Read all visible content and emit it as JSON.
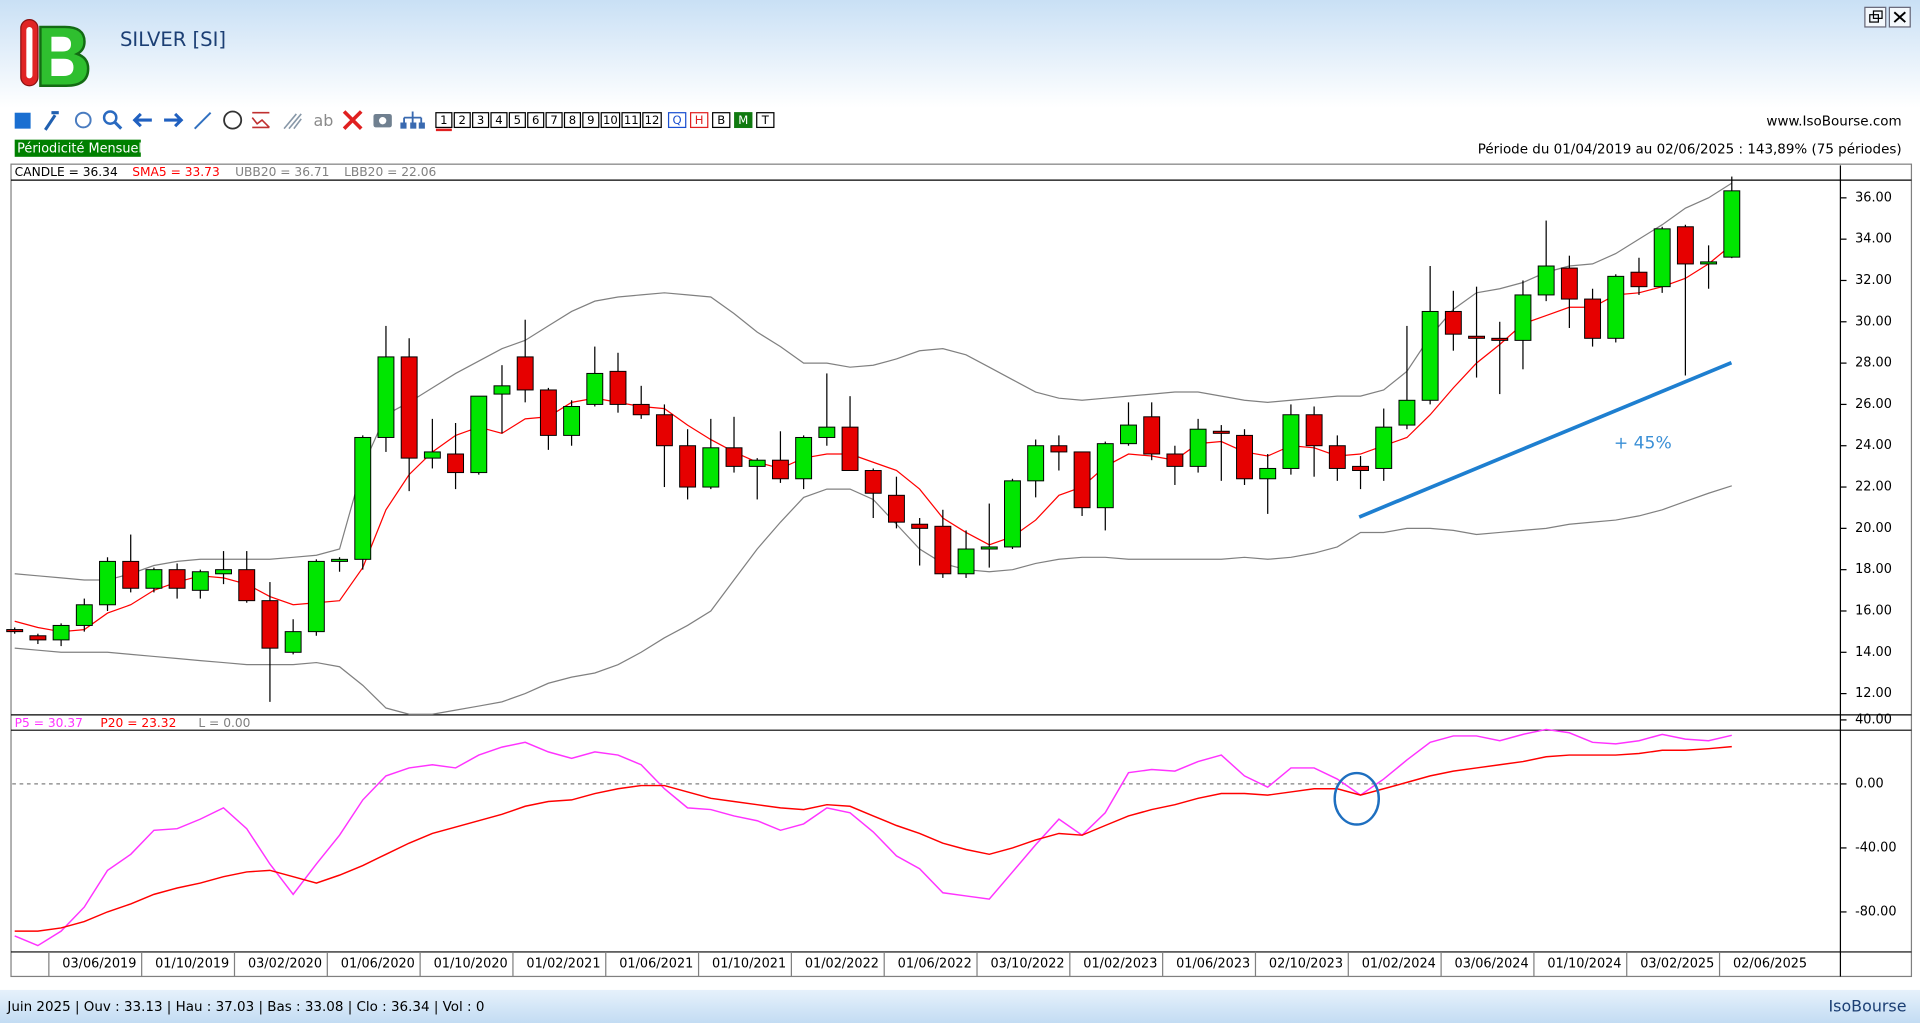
{
  "header": {
    "title": "SILVER [SI]",
    "website": "www.IsoBourse.com",
    "periodicity": "Périodicité Mensuelle",
    "period": "Période du 01/04/2019 au 02/06/2025 : 143,89% (75 périodes)"
  },
  "toolbar": {
    "numbers": [
      "1",
      "2",
      "3",
      "4",
      "5",
      "6",
      "7",
      "8",
      "9",
      "10",
      "11",
      "12"
    ],
    "letters": [
      "Q",
      "H",
      "B",
      "M",
      "T"
    ]
  },
  "chart_data": [
    {
      "type": "candlestick",
      "name": "CANDLE = 36.34",
      "annotation": "+ 45%",
      "up_color": "#00e600",
      "down_color": "#e60000",
      "categories": [
        null,
        null,
        "03/06/2019",
        null,
        null,
        null,
        "01/10/2019",
        null,
        null,
        null,
        "03/02/2020",
        null,
        null,
        null,
        "01/06/2020",
        null,
        null,
        null,
        "01/10/2020",
        null,
        null,
        null,
        "01/02/2021",
        null,
        null,
        null,
        "01/06/2021",
        null,
        null,
        null,
        "01/10/2021",
        null,
        null,
        null,
        "01/02/2022",
        null,
        null,
        null,
        "01/06/2022",
        null,
        null,
        null,
        "03/10/2022",
        null,
        null,
        null,
        "01/02/2023",
        null,
        null,
        null,
        "01/06/2023",
        null,
        null,
        null,
        "02/10/2023",
        null,
        null,
        null,
        "01/02/2024",
        null,
        null,
        null,
        "03/06/2024",
        null,
        null,
        null,
        "01/10/2024",
        null,
        null,
        null,
        "03/02/2025",
        null,
        null,
        null,
        "02/06/2025"
      ],
      "open": [
        15.1,
        14.8,
        14.6,
        15.3,
        16.3,
        18.4,
        17.1,
        18.0,
        17.0,
        17.8,
        18.0,
        16.5,
        14.0,
        15.0,
        18.4,
        18.5,
        24.4,
        28.3,
        23.4,
        23.6,
        22.7,
        26.5,
        28.3,
        26.7,
        24.5,
        26.0,
        27.6,
        26.0,
        25.5,
        24.0,
        22.0,
        23.9,
        23.0,
        23.3,
        22.4,
        24.4,
        24.9,
        22.8,
        21.6,
        20.2,
        20.1,
        17.8,
        19.0,
        19.1,
        22.3,
        24.0,
        23.7,
        21.0,
        24.1,
        25.4,
        23.6,
        23.0,
        24.7,
        24.5,
        22.4,
        22.9,
        25.5,
        24.0,
        23.0,
        22.9,
        25.0,
        26.2,
        30.5,
        29.3,
        29.2,
        29.1,
        31.3,
        32.6,
        31.1,
        29.2,
        32.4,
        31.7,
        34.6,
        32.8,
        33.13
      ],
      "high": [
        15.2,
        14.9,
        15.4,
        16.6,
        18.6,
        19.7,
        18.1,
        18.3,
        18.0,
        18.9,
        18.9,
        17.4,
        15.6,
        18.5,
        18.6,
        24.5,
        29.8,
        29.2,
        25.3,
        25.1,
        26.4,
        27.9,
        30.1,
        26.8,
        26.2,
        28.8,
        28.5,
        26.9,
        26.0,
        24.8,
        25.3,
        25.4,
        23.4,
        24.7,
        24.5,
        27.5,
        26.4,
        22.9,
        22.5,
        20.5,
        20.9,
        19.9,
        21.2,
        22.4,
        24.3,
        24.5,
        23.7,
        24.2,
        26.1,
        26.1,
        24.0,
        25.3,
        25.0,
        24.8,
        23.6,
        26.0,
        25.9,
        24.5,
        23.5,
        25.8,
        29.8,
        32.7,
        31.5,
        31.7,
        30.0,
        32.0,
        34.9,
        33.2,
        31.6,
        32.3,
        33.1,
        34.6,
        34.7,
        33.7,
        37.03
      ],
      "low": [
        14.9,
        14.4,
        14.3,
        15.0,
        16.0,
        16.9,
        16.9,
        16.6,
        16.6,
        17.3,
        16.4,
        11.6,
        13.9,
        14.8,
        17.9,
        18.0,
        23.7,
        21.8,
        22.9,
        21.9,
        22.6,
        24.6,
        26.1,
        23.8,
        24.0,
        25.9,
        25.6,
        25.3,
        22.0,
        21.4,
        21.9,
        22.7,
        21.4,
        22.2,
        21.9,
        24.0,
        22.8,
        20.5,
        20.0,
        18.2,
        17.6,
        17.6,
        18.1,
        19.0,
        21.5,
        22.8,
        20.6,
        19.9,
        24.0,
        23.3,
        22.1,
        22.7,
        22.3,
        22.1,
        20.7,
        22.6,
        22.5,
        22.3,
        21.9,
        22.3,
        24.8,
        26.0,
        28.6,
        27.3,
        26.5,
        27.7,
        31.0,
        29.7,
        28.8,
        29.0,
        31.3,
        31.4,
        27.4,
        31.6,
        33.08
      ],
      "close": [
        15.0,
        14.6,
        15.3,
        16.3,
        18.4,
        17.1,
        18.0,
        17.1,
        17.9,
        18.0,
        16.5,
        14.2,
        15.0,
        18.4,
        18.5,
        24.4,
        28.3,
        23.4,
        23.7,
        22.7,
        26.4,
        26.9,
        26.7,
        24.5,
        25.9,
        27.5,
        26.0,
        25.5,
        24.0,
        22.0,
        23.9,
        23.0,
        23.3,
        22.4,
        24.4,
        24.9,
        22.8,
        21.7,
        20.3,
        20.0,
        17.8,
        19.0,
        19.1,
        22.3,
        24.0,
        23.7,
        21.0,
        24.1,
        25.0,
        23.6,
        23.0,
        24.8,
        24.6,
        22.4,
        22.9,
        25.5,
        24.0,
        22.9,
        22.8,
        24.9,
        26.2,
        30.5,
        29.4,
        29.2,
        29.1,
        31.3,
        32.7,
        31.1,
        29.2,
        32.2,
        31.7,
        34.5,
        32.8,
        32.9,
        36.34
      ],
      "series": [
        {
          "name": "SMA5 = 33.73",
          "color": "#ff0000",
          "values": [
            15.5,
            15.2,
            15.0,
            15.1,
            15.9,
            16.3,
            17.0,
            17.4,
            17.7,
            17.6,
            17.3,
            16.7,
            16.3,
            16.4,
            16.5,
            18.1,
            20.9,
            22.6,
            23.7,
            24.5,
            24.9,
            24.6,
            25.3,
            25.4,
            26.1,
            26.3,
            26.1,
            25.9,
            25.8,
            25.0,
            24.3,
            23.7,
            23.2,
            22.9,
            23.4,
            23.6,
            23.6,
            23.2,
            22.8,
            21.9,
            20.5,
            19.8,
            19.2,
            19.6,
            20.4,
            21.6,
            22.0,
            23.0,
            23.6,
            23.5,
            23.3,
            24.1,
            24.2,
            23.7,
            23.5,
            24.0,
            23.9,
            23.5,
            23.6,
            24.0,
            24.4,
            25.5,
            26.8,
            28.0,
            28.9,
            29.9,
            30.3,
            30.7,
            30.7,
            31.3,
            31.4,
            31.7,
            32.1,
            32.8,
            33.73
          ]
        },
        {
          "name": "UBB20 = 36.71",
          "color": "#808080",
          "values": [
            17.8,
            17.7,
            17.6,
            17.5,
            17.5,
            17.8,
            18.2,
            18.4,
            18.5,
            18.5,
            18.5,
            18.5,
            18.6,
            18.7,
            19.0,
            23.0,
            25.5,
            26.1,
            26.8,
            27.5,
            28.1,
            28.7,
            29.1,
            29.8,
            30.5,
            31.0,
            31.2,
            31.3,
            31.4,
            31.3,
            31.2,
            30.4,
            29.5,
            28.8,
            28.0,
            28.0,
            27.8,
            27.9,
            28.2,
            28.6,
            28.7,
            28.4,
            27.8,
            27.2,
            26.6,
            26.3,
            26.2,
            26.3,
            26.4,
            26.5,
            26.6,
            26.6,
            26.4,
            26.2,
            26.1,
            26.2,
            26.3,
            26.4,
            26.4,
            26.7,
            27.6,
            29.3,
            30.6,
            31.4,
            31.6,
            31.9,
            32.4,
            32.7,
            32.8,
            33.3,
            34.0,
            34.7,
            35.5,
            36.0,
            36.71
          ]
        },
        {
          "name": "LBB20 = 22.06",
          "color": "#808080",
          "values": [
            14.2,
            14.1,
            14.0,
            14.0,
            14.0,
            13.9,
            13.8,
            13.7,
            13.6,
            13.5,
            13.4,
            13.4,
            13.4,
            13.5,
            13.3,
            12.4,
            11.3,
            11.0,
            11.0,
            11.2,
            11.4,
            11.6,
            12.0,
            12.5,
            12.8,
            13.0,
            13.4,
            14.0,
            14.7,
            15.3,
            16.0,
            17.5,
            19.0,
            20.3,
            21.5,
            21.9,
            21.9,
            21.4,
            20.2,
            19.0,
            18.3,
            18.0,
            17.9,
            18.0,
            18.3,
            18.5,
            18.6,
            18.6,
            18.5,
            18.5,
            18.5,
            18.5,
            18.5,
            18.6,
            18.5,
            18.6,
            18.8,
            19.1,
            19.8,
            19.8,
            20.0,
            20.0,
            19.9,
            19.7,
            19.8,
            19.9,
            20.0,
            20.2,
            20.3,
            20.4,
            20.6,
            20.9,
            21.3,
            21.7,
            22.06
          ]
        }
      ],
      "ylim": [
        11,
        36.8
      ],
      "yticks": [
        {
          "value": 12,
          "label": "12.00"
        },
        {
          "value": 14,
          "label": "14.00"
        },
        {
          "value": 16,
          "label": "16.00"
        },
        {
          "value": 18,
          "label": "18.00"
        },
        {
          "value": 20,
          "label": "20.00"
        },
        {
          "value": 22,
          "label": "22.00"
        },
        {
          "value": 24,
          "label": "24.00"
        },
        {
          "value": 26,
          "label": "26.00"
        },
        {
          "value": 28,
          "label": "28.00"
        },
        {
          "value": 30,
          "label": "30.00"
        },
        {
          "value": 32,
          "label": "32.00"
        },
        {
          "value": 34,
          "label": "34.00"
        },
        {
          "value": 36,
          "label": "36.00"
        }
      ]
    },
    {
      "type": "line",
      "series": [
        {
          "name": "P5 = 30.37",
          "color": "#ff33ff",
          "values": [
            -95,
            -101,
            -92,
            -77,
            -54,
            -44,
            -29,
            -28,
            -22,
            -15,
            -28,
            -50,
            -69,
            -50,
            -32,
            -10,
            5,
            10,
            12,
            10,
            18,
            23,
            26,
            20,
            16,
            20,
            18,
            12,
            -3,
            -15,
            -16,
            -20,
            -23,
            -29,
            -25,
            -15,
            -18,
            -30,
            -45,
            -53,
            -68,
            -70,
            -72,
            -55,
            -38,
            -22,
            -32,
            -18,
            7,
            9,
            8,
            14,
            18,
            5,
            -2,
            10,
            10,
            3,
            -7,
            3,
            15,
            26,
            30,
            30,
            27,
            31,
            34,
            32,
            26,
            25,
            27,
            31,
            28,
            27,
            30.37
          ]
        },
        {
          "name": "P20 = 23.32",
          "color": "#ff0000",
          "values": [
            -92,
            -92,
            -90,
            -86,
            -80,
            -75,
            -69,
            -65,
            -62,
            -58,
            -55,
            -54,
            -58,
            -62,
            -57,
            -51,
            -44,
            -37,
            -31,
            -27,
            -23,
            -19,
            -14,
            -11,
            -10,
            -6,
            -3,
            -1,
            -1,
            -5,
            -9,
            -11,
            -13,
            -15,
            -16,
            -13,
            -14,
            -20,
            -26,
            -31,
            -37,
            -41,
            -44,
            -40,
            -35,
            -31,
            -32,
            -26,
            -20,
            -16,
            -13,
            -9,
            -6,
            -6,
            -7,
            -5,
            -3,
            -3,
            -7,
            -3,
            1,
            5,
            8,
            10,
            12,
            14,
            17,
            18,
            18,
            18,
            19,
            21,
            21,
            22,
            23.32
          ]
        }
      ],
      "reference_line": {
        "name": "L = 0.00",
        "value": 0,
        "color": "#808080"
      },
      "ylim": [
        -105,
        42
      ],
      "yticks": [
        {
          "value": 40,
          "label": "40.00"
        },
        {
          "value": 0,
          "label": "0.00"
        },
        {
          "value": -40,
          "label": "-40.00"
        },
        {
          "value": -80,
          "label": "-80.00"
        }
      ]
    }
  ],
  "status_bar": {
    "text": "Juin 2025 | Ouv : 33.13 | Hau : 37.03 | Bas : 33.08 | Clo : 36.34 | Vol : 0",
    "brand": "IsoBourse"
  }
}
